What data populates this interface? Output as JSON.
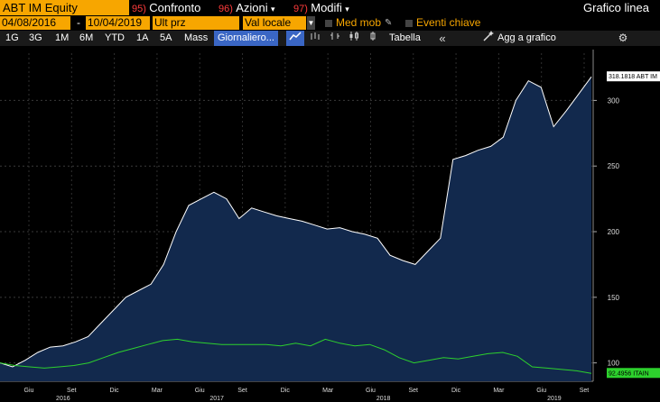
{
  "top": {
    "security": "ABT IM Equity",
    "m1_num": "95)",
    "m1_label": "Confronto",
    "m2_num": "96)",
    "m2_label": "Azioni",
    "m3_num": "97)",
    "m3_label": "Modifi",
    "title": "Grafico linea"
  },
  "dates": {
    "start": "04/08/2016",
    "sep": "-",
    "end": "10/04/2019",
    "field": "Ult prz",
    "currency": "Val locale",
    "mov_avg": "Med mob",
    "key_events": "Eventi chiave"
  },
  "nav": {
    "ranges": [
      "1G",
      "3G",
      "1M",
      "6M",
      "YTD",
      "1A",
      "5A",
      "Mass"
    ],
    "frequency": "Giornaliero...",
    "table": "Tabella",
    "add_to_chart": "Agg a grafico"
  },
  "chart_data": {
    "type": "area",
    "series": [
      {
        "name": "ABT IM Equity",
        "last_label": "318.1818 ABT IM",
        "color": "#ffffff",
        "fill": "#12294d",
        "values": [
          100,
          97,
          102,
          108,
          112,
          113,
          116,
          120,
          130,
          140,
          150,
          155,
          160,
          175,
          200,
          220,
          225,
          230,
          225,
          210,
          218,
          215,
          212,
          210,
          208,
          205,
          202,
          203,
          200,
          198,
          195,
          182,
          178,
          175,
          185,
          195,
          255,
          258,
          262,
          265,
          272,
          300,
          315,
          310,
          280,
          292,
          305,
          318
        ]
      },
      {
        "name": "ITAIN",
        "last_label": "92.4956 ITAIN",
        "color": "#2dd12d",
        "values": [
          100,
          98,
          97,
          96,
          97,
          98,
          100,
          104,
          108,
          111,
          114,
          117,
          118,
          116,
          115,
          114,
          114,
          114,
          114,
          113,
          115,
          113,
          118,
          115,
          113,
          114,
          110,
          104,
          100,
          102,
          104,
          103,
          105,
          107,
          108,
          105,
          97,
          96,
          95,
          94,
          92
        ]
      }
    ],
    "ylim": [
      86,
      336
    ],
    "y_ticks": [
      100,
      150,
      200,
      250,
      300
    ],
    "x_tick_labels": [
      "Giu",
      "Set",
      "Dic",
      "Mar",
      "Giu",
      "Set",
      "Dic",
      "Mar",
      "Giu",
      "Set",
      "Dic",
      "Mar",
      "Giu",
      "Set"
    ],
    "x_year_labels": [
      "2016",
      "2017",
      "2018",
      "2019"
    ],
    "grid": true
  }
}
